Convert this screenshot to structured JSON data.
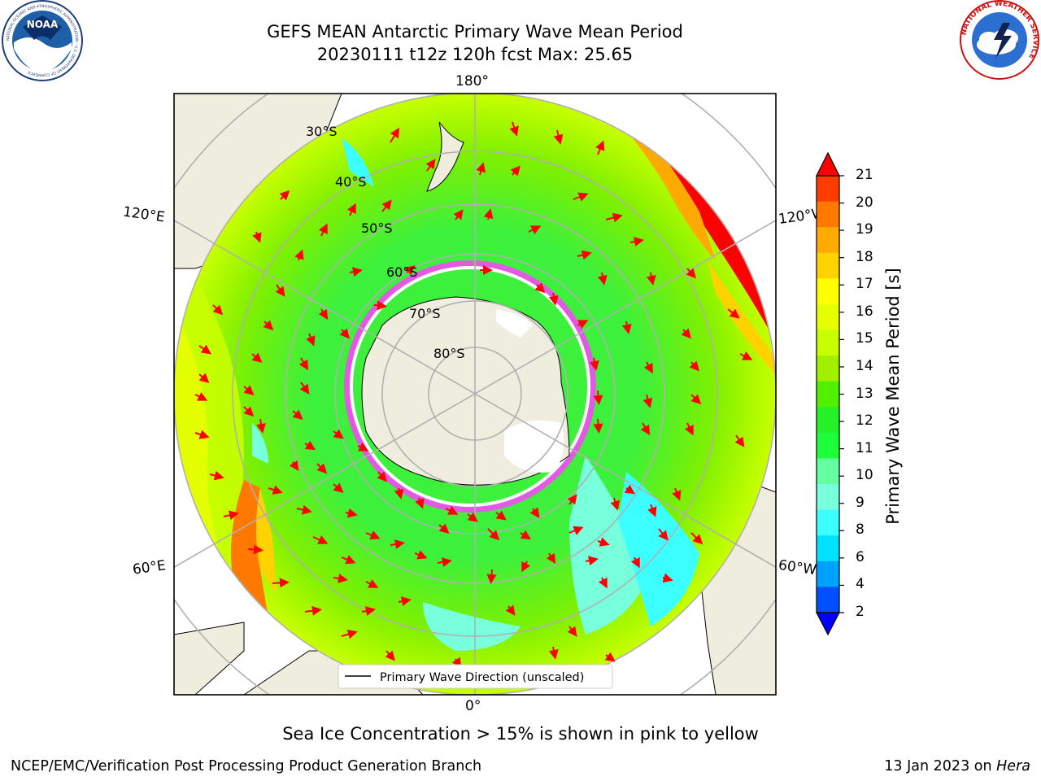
{
  "header": {
    "title_line1": "GEFS MEAN Antarctic Primary Wave Mean Period",
    "title_line2": "20230111 t12z 120h fcst   Max: 25.65",
    "left_logo_text": "NOAA",
    "left_logo_ring": "NATIONAL OCEANIC AND ATMOSPHERIC ADMINISTRATION · U.S. DEPARTMENT OF COMMERCE",
    "right_logo_ring": "NATIONAL WEATHER SERVICE"
  },
  "map": {
    "longitude_labels": {
      "top": "180°",
      "bottom": "0°",
      "left_upper": "120°E",
      "left_lower": "60°E",
      "right_upper": "120°W",
      "right_lower": "60°W"
    },
    "latitude_labels": [
      "30°S",
      "40°S",
      "50°S",
      "60°S",
      "70°S",
      "80°S"
    ],
    "legend_label": "Primary Wave Direction (unscaled)",
    "colors": {
      "land": "#efedde",
      "arrow": "#ff0000",
      "grid": "#b0b0b0",
      "ocean_green": "#3cf03c",
      "ocean_lime": "#aaf000"
    }
  },
  "colorbar": {
    "label": "Primary Wave Mean Period [s]",
    "ticks": [
      "21",
      "20",
      "19",
      "18",
      "17",
      "16",
      "15",
      "14",
      "13",
      "12",
      "11",
      "10",
      "9",
      "8",
      "6",
      "4",
      "2"
    ],
    "colors": [
      "#ff0000",
      "#ff3c00",
      "#ff7800",
      "#ffaa00",
      "#ffd200",
      "#ffff00",
      "#e6ff00",
      "#c8ff00",
      "#a0f000",
      "#50f000",
      "#28f028",
      "#1eff3c",
      "#64ffa0",
      "#78ffdc",
      "#3cffff",
      "#00e1ff",
      "#00a0ff",
      "#0050ff"
    ],
    "over_color": "#ff0000",
    "under_color": "#0000ff"
  },
  "footer": {
    "subtitle": "Sea Ice Concentration > 15% is shown in pink to yellow",
    "left": "NCEP/EMC/Verification Post Processing Product Generation Branch",
    "right_prefix": "13 Jan 2023 on ",
    "right_italic": "Hera"
  }
}
